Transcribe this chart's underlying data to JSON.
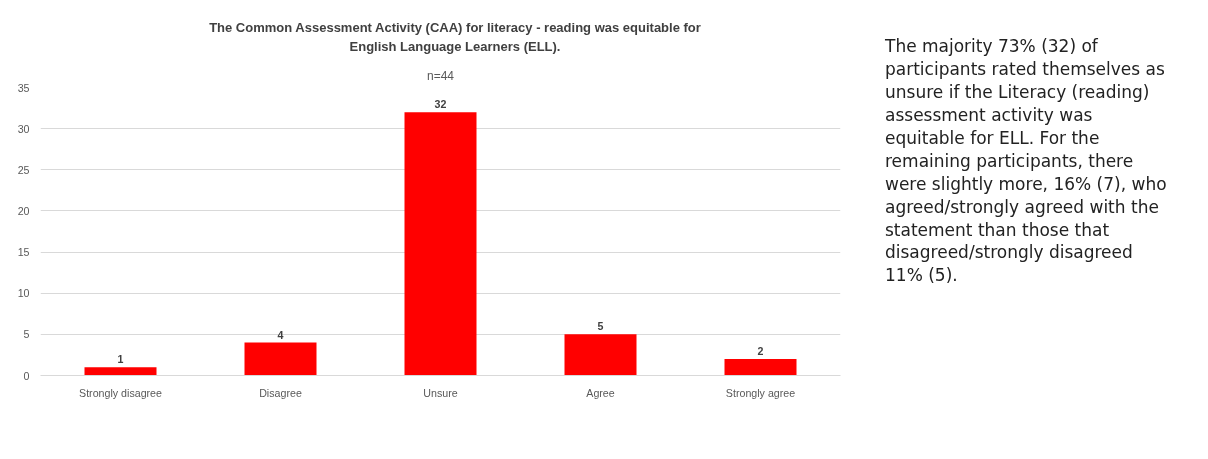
{
  "chart_data": {
    "type": "bar",
    "title": "The Common Assessment Activity (CAA) for literacy - reading was equitable for English Language Learners (ELL).",
    "subtitle": "n=44",
    "categories": [
      "Strongly disagree",
      "Disagree",
      "Unsure",
      "Agree",
      "Strongly agree"
    ],
    "values": [
      1,
      4,
      32,
      5,
      2
    ],
    "color": "#ff0000",
    "ylim": [
      0,
      35
    ],
    "yticks": [
      0,
      5,
      10,
      15,
      20,
      25,
      30,
      35
    ],
    "grid": "y",
    "data_labels": true,
    "annotations": [
      "The majority 73% (32) of participants rated themselves as unsure if the Literacy (reading) assessment activity was equitable for ELL. For the remaining participants, there were slightly more, 16% (7), who agreed/strongly agreed with the statement than those that disagreed/strongly disagreed 11% (5)."
    ]
  }
}
